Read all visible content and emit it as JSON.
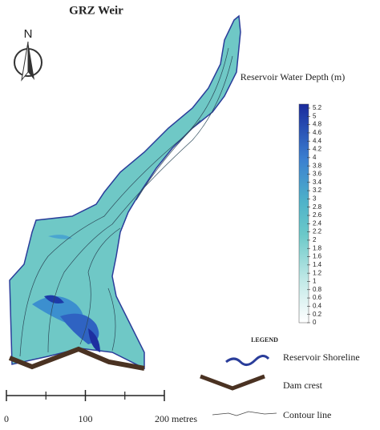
{
  "header": {
    "title": "GRZ Weir",
    "north": "N"
  },
  "colorbar": {
    "title": "Reservoir Water Depth (m)",
    "lim": [
      0,
      5.2
    ],
    "ticks": [
      0,
      0.2,
      0.4,
      0.6,
      0.8,
      1,
      1.2,
      1.4,
      1.6,
      1.8,
      2,
      2.2,
      2.4,
      2.6,
      2.8,
      3,
      3.2,
      3.4,
      3.6,
      3.8,
      4,
      4.2,
      4.4,
      4.6,
      4.8,
      5,
      5.2
    ]
  },
  "legend": {
    "title": "LEGEND",
    "items": [
      "Reservoir Shoreline",
      "Dam crest",
      "Contour line"
    ]
  },
  "scale_bar": {
    "lim": [
      0,
      200
    ],
    "ticks": [
      0,
      100,
      {
        "value": 200,
        "label": "200 metres"
      }
    ]
  }
}
